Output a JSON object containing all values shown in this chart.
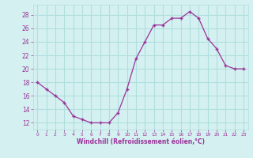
{
  "x": [
    0,
    1,
    2,
    3,
    4,
    5,
    6,
    7,
    8,
    9,
    10,
    11,
    12,
    13,
    14,
    15,
    16,
    17,
    18,
    19,
    20,
    21,
    22,
    23
  ],
  "y": [
    18,
    17,
    16,
    15,
    13,
    12.5,
    12,
    12,
    12,
    13.5,
    17,
    21.5,
    24,
    26.5,
    26.5,
    27.5,
    27.5,
    28.5,
    27.5,
    24.5,
    23,
    20.5,
    20,
    20
  ],
  "line_color": "#993399",
  "marker": "+",
  "bg_color": "#d5f0f0",
  "grid_color": "#b0dede",
  "xlabel": "Windchill (Refroidissement éolien,°C)",
  "xlabel_color": "#993399",
  "tick_color": "#993399",
  "ylabel_ticks": [
    12,
    14,
    16,
    18,
    20,
    22,
    24,
    26,
    28
  ],
  "xlim": [
    -0.5,
    23.5
  ],
  "ylim": [
    11,
    29.5
  ],
  "xtick_labels": [
    "0",
    "1",
    "2",
    "3",
    "4",
    "5",
    "6",
    "7",
    "8",
    "9",
    "10",
    "11",
    "12",
    "13",
    "14",
    "15",
    "16",
    "17",
    "18",
    "19",
    "20",
    "21",
    "22",
    "23"
  ]
}
